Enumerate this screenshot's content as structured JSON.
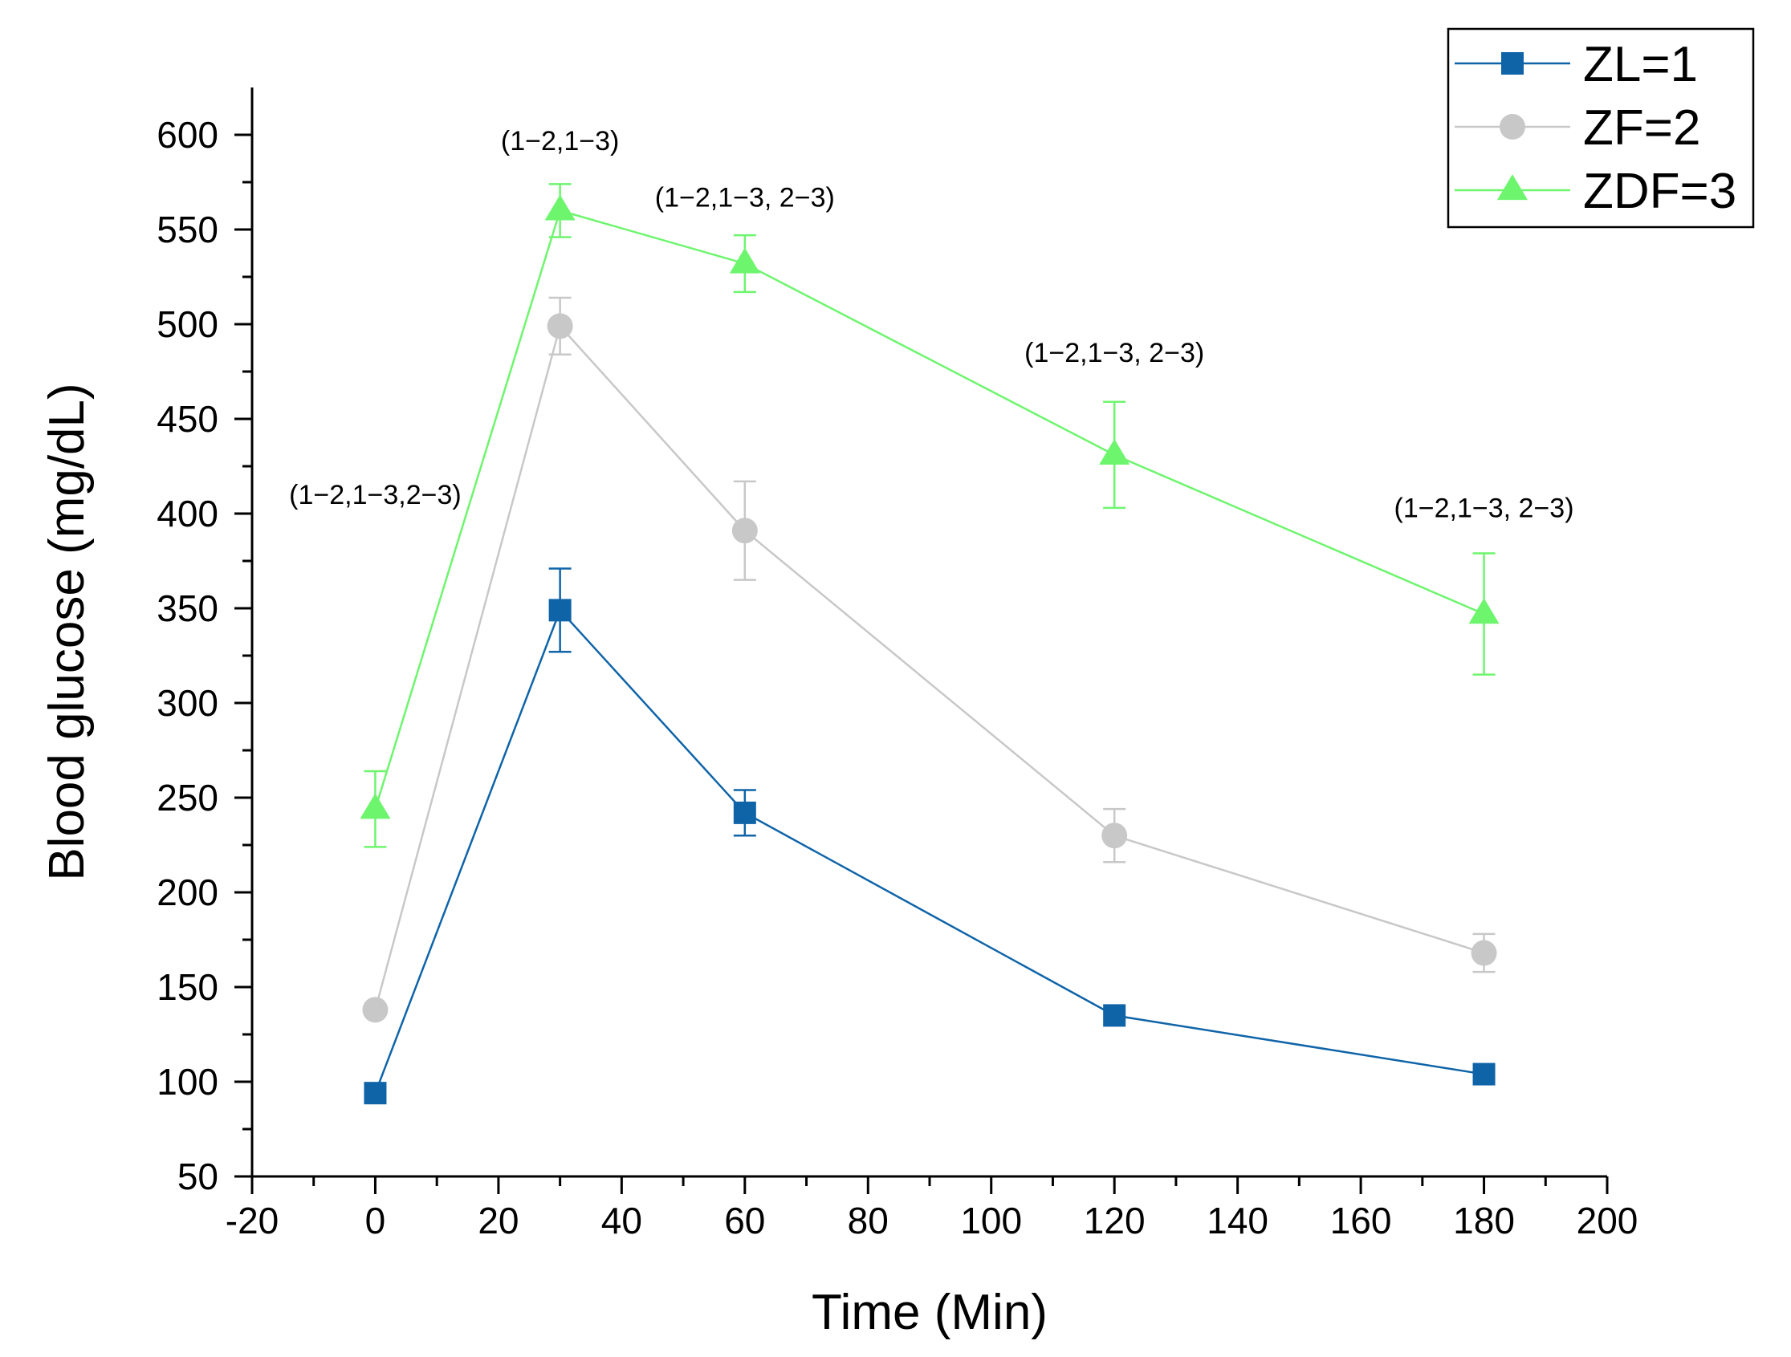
{
  "chart_data": {
    "type": "line",
    "title": "",
    "xlabel": "Time (Min)",
    "ylabel": "Blood glucose (mg/dL)",
    "xlim": [
      -20,
      200
    ],
    "ylim": [
      50,
      625
    ],
    "xticks": [
      -20,
      0,
      20,
      40,
      60,
      80,
      100,
      120,
      140,
      160,
      180,
      200
    ],
    "yticks": [
      50,
      100,
      150,
      200,
      250,
      300,
      350,
      400,
      450,
      500,
      550,
      600
    ],
    "x": [
      0,
      30,
      60,
      120,
      180
    ],
    "series": [
      {
        "name": "ZL=1",
        "marker": "square",
        "color": "#0f64a8",
        "values": [
          94,
          349,
          242,
          135,
          104
        ],
        "errors": [
          null,
          22,
          12,
          null,
          null
        ]
      },
      {
        "name": "ZF=2",
        "marker": "circle",
        "color": "#c8c8c8",
        "values": [
          138,
          499,
          391,
          230,
          168
        ],
        "errors": [
          null,
          15,
          26,
          14,
          10
        ]
      },
      {
        "name": "ZDF=3",
        "marker": "triangle",
        "color": "#6ef56e",
        "values": [
          244,
          560,
          532,
          431,
          347
        ],
        "errors": [
          20,
          14,
          15,
          28,
          32
        ]
      }
    ],
    "annotations": [
      {
        "text": "(1−2,1−3,2−3)",
        "x": 0,
        "y": 405
      },
      {
        "text": "(1−2,1−3)",
        "x": 30,
        "y": 592
      },
      {
        "text": "(1−2,1−3, 2−3)",
        "x": 60,
        "y": 562
      },
      {
        "text": "(1−2,1−3, 2−3)",
        "x": 120,
        "y": 480
      },
      {
        "text": "(1−2,1−3, 2−3)",
        "x": 180,
        "y": 398
      }
    ],
    "legend_position": "top-right",
    "grid": false
  }
}
